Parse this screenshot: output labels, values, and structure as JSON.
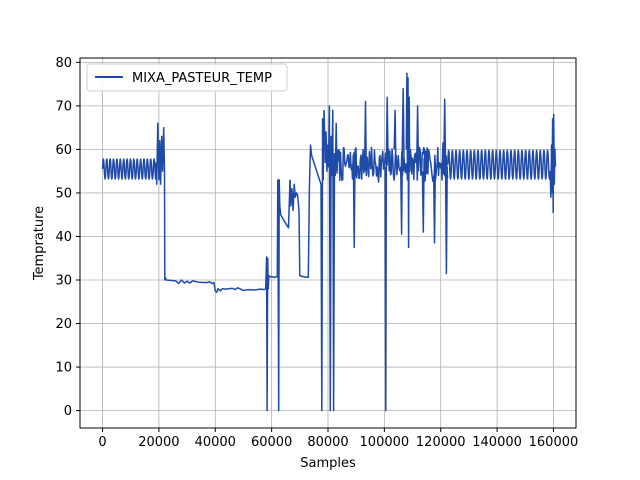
{
  "chart_data": {
    "type": "line",
    "title": "",
    "xlabel": "Samples",
    "ylabel": "Temprature",
    "xlim": [
      -8000,
      168000
    ],
    "ylim": [
      -4,
      81
    ],
    "xticks": [
      0,
      20000,
      40000,
      60000,
      80000,
      100000,
      120000,
      140000,
      160000
    ],
    "xtick_labels": [
      "0",
      "20000",
      "40000",
      "60000",
      "80000",
      "100000",
      "120000",
      "140000",
      "160000"
    ],
    "yticks": [
      0,
      10,
      20,
      30,
      40,
      50,
      60,
      70,
      80
    ],
    "ytick_labels": [
      "0",
      "10",
      "20",
      "30",
      "40",
      "50",
      "60",
      "70",
      "80"
    ],
    "grid": true,
    "legend_position": "top-left",
    "series": [
      {
        "name": "MIXA_PASTEUR_TEMP",
        "color": "#1f4aa8",
        "segments": [
          {
            "type": "osc",
            "x0": 0,
            "x1": 19000,
            "center": 55.5,
            "amp": 2.3,
            "period": 1200
          },
          {
            "type": "pts",
            "x": [
              19000,
              19200,
              19600,
              20000,
              20300,
              20600,
              21000,
              21300,
              21700,
              22000,
              22100,
              22300,
              22500
            ],
            "y": [
              57,
              52,
              66,
              53,
              62,
              52,
              63,
              55,
              65,
              55,
              30,
              30.5,
              30
            ]
          },
          {
            "type": "pts",
            "x": [
              22500,
              26000,
              27000,
              28000,
              29000,
              30000,
              31000,
              32000,
              34000,
              37000,
              38000,
              38800,
              39500,
              40000,
              40500,
              41000,
              41800,
              42500,
              44000,
              46000,
              47000,
              48000,
              50000,
              52000,
              54000,
              56000,
              57500
            ],
            "y": [
              30,
              29.8,
              29.2,
              30,
              29.3,
              29.7,
              29.3,
              29.8,
              29.5,
              29.4,
              29.6,
              29.2,
              29.4,
              27.5,
              27.2,
              28,
              27.5,
              28,
              27.9,
              28.1,
              27.8,
              28.2,
              27.6,
              27.8,
              27.7,
              27.9,
              27.8
            ]
          },
          {
            "type": "pts",
            "x": [
              57500,
              57900,
              58200,
              58400,
              58600,
              58800,
              59000,
              59300,
              59600,
              60000,
              61000,
              62000,
              62200,
              62500,
              62700,
              62900,
              63200,
              64500,
              66000,
              66500
            ],
            "y": [
              27.8,
              28,
              35.3,
              0,
              35,
              28,
              31,
              30.8,
              30.7,
              30.8,
              30.6,
              30.8,
              53,
              0,
              53,
              47,
              45,
              43.5,
              42,
              53
            ]
          },
          {
            "type": "pts",
            "x": [
              66500,
              66800,
              67200,
              67600,
              68000,
              68400,
              68800,
              69200,
              69700,
              70000,
              71000,
              72000,
              73000,
              73400,
              73800,
              74200,
              75000,
              76000,
              77000,
              77500,
              77800,
              78100,
              78300,
              78600
            ],
            "y": [
              53,
              47,
              51,
              46,
              52,
              49,
              50,
              49.5,
              46,
              31,
              30.8,
              30.7,
              30.6,
              51,
              61,
              58.5,
              57,
              55,
              53,
              52,
              0,
              67,
              53,
              69
            ]
          },
          {
            "type": "pts",
            "x": [
              78600,
              79000,
              79300,
              79600,
              79900,
              80200,
              80500,
              80800,
              81100,
              81400,
              81700,
              82000,
              82300,
              82600,
              82900,
              83200
            ],
            "y": [
              69,
              57,
              64,
              55,
              61,
              56,
              70,
              0,
              63,
              54,
              69,
              0,
              59,
              54,
              66,
              55
            ]
          },
          {
            "type": "noise",
            "x0": 83200,
            "x1": 122500,
            "center": 56.5,
            "amp": 4,
            "step": 250,
            "seed": 7
          },
          {
            "type": "pts",
            "x": [
              89000,
              89300,
              89600,
              89900
            ],
            "y": [
              58,
              37.5,
              60,
              56
            ]
          },
          {
            "type": "pts",
            "x": [
              93000,
              93300,
              93600,
              93800
            ],
            "y": [
              56,
              71,
              54,
              58
            ]
          },
          {
            "type": "pts",
            "x": [
              100300,
              100500,
              100700,
              101000,
              101300
            ],
            "y": [
              56,
              0,
              55,
              72,
              58
            ]
          },
          {
            "type": "pts",
            "x": [
              103500,
              103800,
              104100
            ],
            "y": [
              60,
              69,
              56
            ]
          },
          {
            "type": "pts",
            "x": [
              105800,
              106100,
              106400,
              106700,
              107000
            ],
            "y": [
              56,
              40.5,
              62,
              74,
              55
            ]
          },
          {
            "type": "pts",
            "x": [
              107800,
              108000,
              108200,
              108400,
              108600,
              108800,
              109000,
              109300
            ],
            "y": [
              60,
              77.5,
              53,
              76.5,
              37.5,
              72,
              55,
              60
            ]
          },
          {
            "type": "pts",
            "x": [
              111500,
              111800,
              112100
            ],
            "y": [
              57,
              70,
              55
            ]
          },
          {
            "type": "pts",
            "x": [
              113500,
              113800,
              114100
            ],
            "y": [
              55,
              41,
              58
            ]
          },
          {
            "type": "pts",
            "x": [
              117500,
              117800,
              118100
            ],
            "y": [
              54,
              38.5,
              57
            ]
          },
          {
            "type": "pts",
            "x": [
              120500,
              120800,
              121100,
              121400,
              121700,
              122000,
              122300
            ],
            "y": [
              55,
              61.5,
              56,
              71.5,
              57,
              31.5,
              56
            ]
          },
          {
            "type": "osc",
            "x0": 122500,
            "x1": 158800,
            "center": 56.5,
            "amp": 3.3,
            "period": 1300
          },
          {
            "type": "pts",
            "x": [
              158800,
              159100,
              159300,
              159500,
              159700,
              159900,
              160100,
              160300,
              160500,
              160700
            ],
            "y": [
              55,
              49,
              61,
              50,
              67,
              45.5,
              68,
              52,
              60,
              56
            ]
          }
        ]
      }
    ]
  }
}
